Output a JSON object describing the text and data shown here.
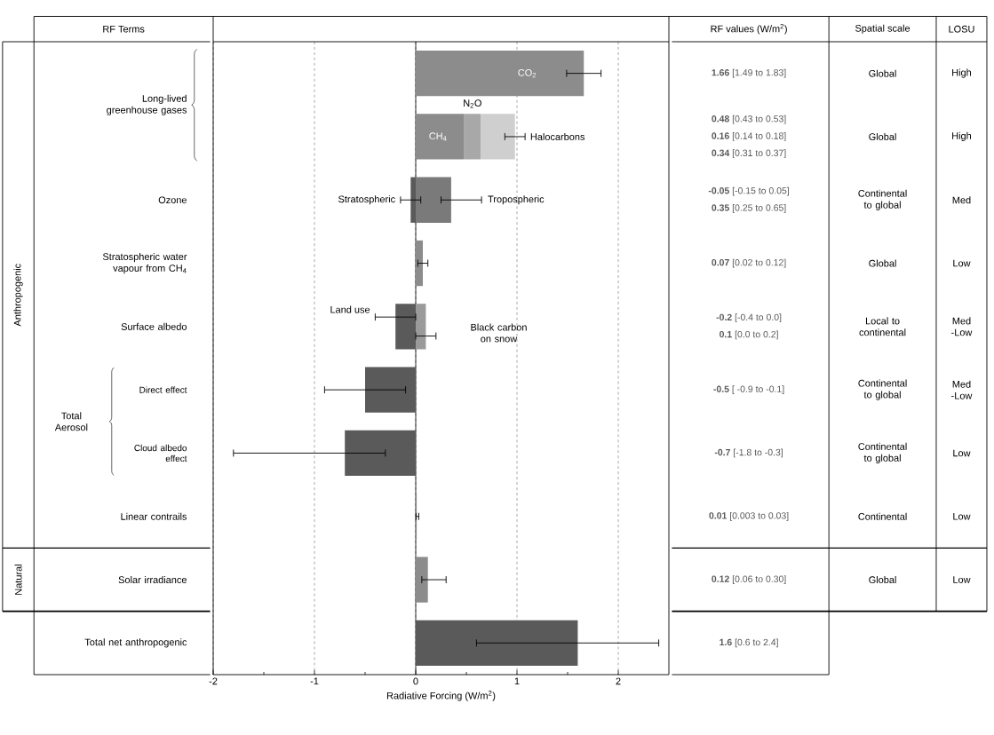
{
  "chart_data": {
    "type": "bar",
    "orientation": "horizontal",
    "categories": [
      "Long-lived greenhouse gases",
      null,
      "Ozone",
      "Stratospheric water vapour from CH$_{4}$",
      "Surface albedo",
      "Direct effect",
      "Cloud albedo effect",
      "Linear contrails",
      "Solar irradiance",
      "Total net anthropogenic"
    ],
    "xlabel": "Radiative Forcing (W/m$^{2}$)",
    "xlim": [
      -2,
      2.5
    ],
    "xticks": [
      -2,
      -1,
      0,
      1,
      2
    ],
    "grid": "x",
    "ref_lines": [
      {
        "axis": "x",
        "value": 0,
        "color": "#000000",
        "line_style": "solid"
      }
    ],
    "series": [
      {
        "colors": [
          "#8c8c8c",
          "#8c8c8c",
          "#5a5a5a",
          "#8c8c8c",
          "#5a5a5a",
          "#5a5a5a",
          "#5a5a5a",
          "#8c8c8c",
          "#8c8c8c",
          "#5a5a5a"
        ],
        "values": [
          1.66,
          0.48,
          -0.05,
          0.07,
          -0.2,
          -0.5,
          -0.7,
          0.01,
          0.12,
          1.6
        ],
        "errors": [
          [
            1.49,
            1.83
          ],
          null,
          [
            -0.15,
            0.05
          ],
          [
            0.02,
            0.12
          ],
          [
            -0.4,
            0.0
          ],
          [
            -0.9,
            -0.1
          ],
          [
            -1.8,
            -0.3
          ],
          [
            0.003,
            0.03
          ],
          [
            0.06,
            0.3
          ],
          [
            0.6,
            2.4
          ]
        ]
      },
      {
        "colors": [
          null,
          "#a8a8a8",
          "#7a7a7a",
          null,
          "#9a9a9a",
          null,
          null,
          null,
          null,
          null
        ],
        "values": [
          null,
          0.16,
          0.35,
          null,
          0.1,
          null,
          null,
          null,
          null,
          null
        ],
        "base": [
          null,
          0.48,
          0,
          null,
          0,
          null,
          null,
          null,
          null,
          null
        ],
        "errors": [
          null,
          null,
          [
            0.25,
            0.65
          ],
          null,
          [
            0.0,
            0.2
          ],
          null,
          null,
          null,
          null,
          null
        ]
      },
      {
        "color": "#cfcfcf",
        "values": [
          null,
          0.34,
          null,
          null,
          null,
          null,
          null,
          null,
          null,
          null
        ],
        "base": [
          null,
          0.64,
          null,
          null,
          null,
          null,
          null,
          null,
          null,
          null
        ],
        "errors": [
          null,
          [
            0.88,
            1.08
          ],
          null,
          null,
          null,
          null,
          null,
          null,
          null,
          null
        ]
      }
    ],
    "annotations": [
      "RF Terms",
      "RF values (W/m$^{2}$)",
      "Spatial scale",
      "LOSU",
      "Anthropogenic",
      "Natural",
      "Total Aerosol",
      "**1.66** [1.49 to 1.83]",
      "**0.48** [0.43 to 0.53]",
      "**0.16** [0.14 to 0.18]",
      "**0.34** [0.31 to 0.37]",
      "**-0.05** [-0.15 to 0.05]",
      "**0.35** [0.25 to 0.65]",
      "**0.07** [0.02 to 0.12]",
      "**-0.2** [-0.4 to 0.0]",
      "**0.1** [0.0 to 0.2]",
      "**-0.5** [ -0.9 to -0.1]",
      "**-0.7** [-1.8 to -0.3]",
      "**0.01** [0.003 to 0.03]",
      "**0.12** [0.06 to 0.30]",
      "**1.6** [0.6 to 2.4]",
      "Global",
      "Global",
      "Continental to global",
      "Global",
      "Local to continental",
      "Continental to global",
      "Continental to global",
      "Continental",
      "Global",
      "High",
      "High",
      "Med",
      "Low",
      "Med -Low",
      "Med -Low",
      "Low",
      "Low",
      "Low",
      "CO$_{2}$",
      "CH$_{4}$",
      "N$_{2}$O",
      "Halocarbons",
      "Stratospheric",
      "Tropospheric",
      "Land use",
      "Black carbon on snow"
    ]
  }
}
